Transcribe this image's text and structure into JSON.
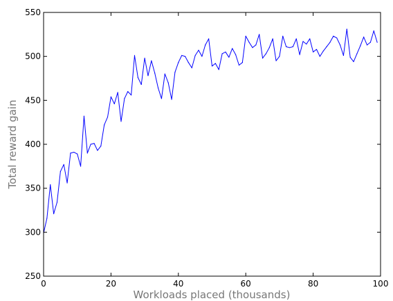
{
  "chart_data": {
    "type": "line",
    "xlabel": "Workloads placed (thousands)",
    "ylabel": "Total reward gain",
    "xlim": [
      0,
      100
    ],
    "ylim": [
      250,
      550
    ],
    "xticks": [
      0,
      20,
      40,
      60,
      80,
      100
    ],
    "yticks": [
      250,
      300,
      350,
      400,
      450,
      500,
      550
    ],
    "xtick_labels": [
      "0",
      "20",
      "40",
      "60",
      "80",
      "100"
    ],
    "ytick_labels": [
      "250",
      "300",
      "350",
      "400",
      "450",
      "500",
      "550"
    ],
    "grid": false,
    "series": [
      {
        "color": "#0000ff",
        "x": [
          0,
          1,
          2,
          3,
          4,
          5,
          6,
          7,
          8,
          9,
          10,
          11,
          12,
          13,
          14,
          15,
          16,
          17,
          18,
          19,
          20,
          21,
          22,
          23,
          24,
          25,
          26,
          27,
          28,
          29,
          30,
          31,
          32,
          33,
          34,
          35,
          36,
          37,
          38,
          39,
          40,
          41,
          42,
          43,
          44,
          45,
          46,
          47,
          48,
          49,
          50,
          51,
          52,
          53,
          54,
          55,
          56,
          57,
          58,
          59,
          60,
          61,
          62,
          63,
          64,
          65,
          66,
          67,
          68,
          69,
          70,
          71,
          72,
          73,
          74,
          75,
          76,
          77,
          78,
          79,
          80,
          81,
          82,
          83,
          84,
          85,
          86,
          87,
          88,
          89,
          90,
          91,
          92,
          93,
          94,
          95,
          96,
          97,
          98,
          99
        ],
        "values": [
          299,
          316,
          354,
          321,
          334,
          369,
          377,
          356,
          390,
          391,
          389,
          375,
          432,
          390,
          400,
          401,
          393,
          398,
          422,
          431,
          454,
          446,
          459,
          426,
          452,
          460,
          456,
          501,
          476,
          468,
          498,
          478,
          495,
          481,
          464,
          452,
          480,
          470,
          451,
          482,
          493,
          501,
          500,
          493,
          487,
          501,
          507,
          500,
          513,
          520,
          489,
          492,
          485,
          503,
          505,
          499,
          509,
          502,
          490,
          493,
          523,
          516,
          510,
          513,
          525,
          498,
          503,
          510,
          520,
          495,
          500,
          523,
          511,
          510,
          511,
          520,
          502,
          517,
          514,
          520,
          505,
          508,
          500,
          506,
          511,
          516,
          523,
          521,
          513,
          501,
          531,
          499,
          494,
          503,
          512,
          522,
          513,
          516,
          529,
          516
        ]
      }
    ]
  }
}
